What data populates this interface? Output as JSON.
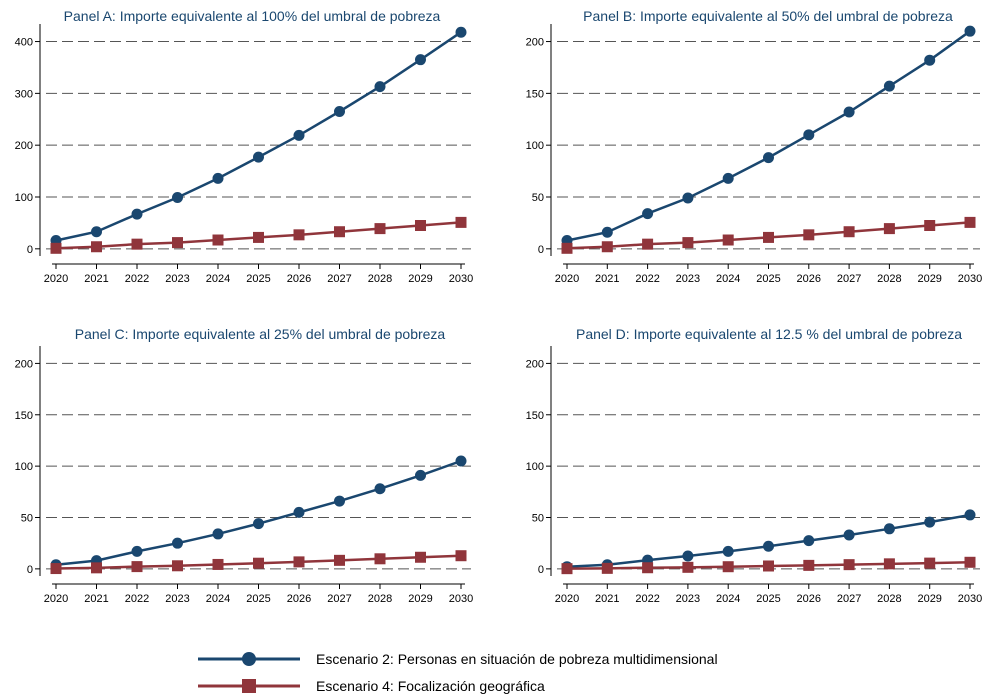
{
  "chart_data": [
    {
      "type": "line",
      "title": "Panel A: Importe equivalente al 100% del umbral de pobreza",
      "x": [
        2020,
        2021,
        2022,
        2023,
        2024,
        2025,
        2026,
        2027,
        2028,
        2029,
        2030
      ],
      "y_ticks": [
        0,
        100,
        200,
        300,
        400
      ],
      "ylim": [
        -10,
        430
      ],
      "grid": true,
      "series": [
        {
          "name": "Escenario 2: Personas en situación de pobreza multidimensional",
          "values": [
            16,
            33,
            67,
            99,
            136,
            177,
            219,
            265,
            313,
            365,
            418
          ]
        },
        {
          "name": "Escenario 4: Focalización geográfica",
          "values": [
            1,
            4,
            9,
            12,
            17,
            22,
            27,
            33,
            39,
            45,
            51
          ]
        }
      ]
    },
    {
      "type": "line",
      "title": "Panel B: Importe equivalente al 50% del umbral de pobreza",
      "x": [
        2020,
        2021,
        2022,
        2023,
        2024,
        2025,
        2026,
        2027,
        2028,
        2029,
        2030
      ],
      "y_ticks": [
        0,
        50,
        100,
        150,
        200
      ],
      "ylim": [
        -5,
        215
      ],
      "grid": true,
      "series": [
        {
          "name": "Escenario 2: Personas en situación de pobreza multidimensional",
          "values": [
            8,
            16,
            34,
            49,
            68,
            88,
            110,
            132,
            157,
            182,
            210
          ]
        },
        {
          "name": "Escenario 4: Focalización geográfica",
          "values": [
            0.5,
            2,
            4.5,
            6,
            8.5,
            11,
            13.5,
            16.5,
            19.5,
            22.5,
            25.5
          ]
        }
      ]
    },
    {
      "type": "line",
      "title": "Panel C: Importe equivalente al 25% del umbral de pobreza",
      "x": [
        2020,
        2021,
        2022,
        2023,
        2024,
        2025,
        2026,
        2027,
        2028,
        2029,
        2030
      ],
      "y_ticks": [
        0,
        50,
        100,
        150,
        200
      ],
      "ylim": [
        -5,
        215
      ],
      "grid": true,
      "series": [
        {
          "name": "Escenario 2: Personas en situación de pobreza multidimensional",
          "values": [
            4,
            8,
            17,
            25,
            34,
            44,
            55,
            66,
            78,
            91,
            105
          ]
        },
        {
          "name": "Escenario 4: Focalización geográfica",
          "values": [
            0.3,
            1,
            2.2,
            3,
            4.3,
            5.5,
            6.8,
            8.3,
            9.8,
            11.3,
            12.8
          ]
        }
      ]
    },
    {
      "type": "line",
      "title": "Panel D: Importe equivalente al 12.5 % del umbral de pobreza",
      "x": [
        2020,
        2021,
        2022,
        2023,
        2024,
        2025,
        2026,
        2027,
        2028,
        2029,
        2030
      ],
      "y_ticks": [
        0,
        50,
        100,
        150,
        200
      ],
      "ylim": [
        -5,
        215
      ],
      "grid": true,
      "series": [
        {
          "name": "Escenario 2: Personas en situación de pobreza multidimensional",
          "values": [
            2,
            4,
            8.5,
            12.5,
            17,
            22,
            27.5,
            33,
            39,
            45.5,
            52.5
          ]
        },
        {
          "name": "Escenario 4: Focalización geográfica",
          "values": [
            0.2,
            0.5,
            1.1,
            1.5,
            2.1,
            2.8,
            3.4,
            4.1,
            4.9,
            5.6,
            6.4
          ]
        }
      ]
    }
  ],
  "legend": {
    "placement": "bottom",
    "items": [
      {
        "label": "Escenario 2: Personas en situación de pobreza multidimensional",
        "color": "#1a476f",
        "marker": "circle"
      },
      {
        "label": "Escenario 4: Focalización geográfica",
        "color": "#90353b",
        "marker": "square"
      }
    ]
  },
  "colors": {
    "series_1": "#1a476f",
    "series_2": "#90353b",
    "grid": "#555555",
    "title": "#1a476f"
  }
}
